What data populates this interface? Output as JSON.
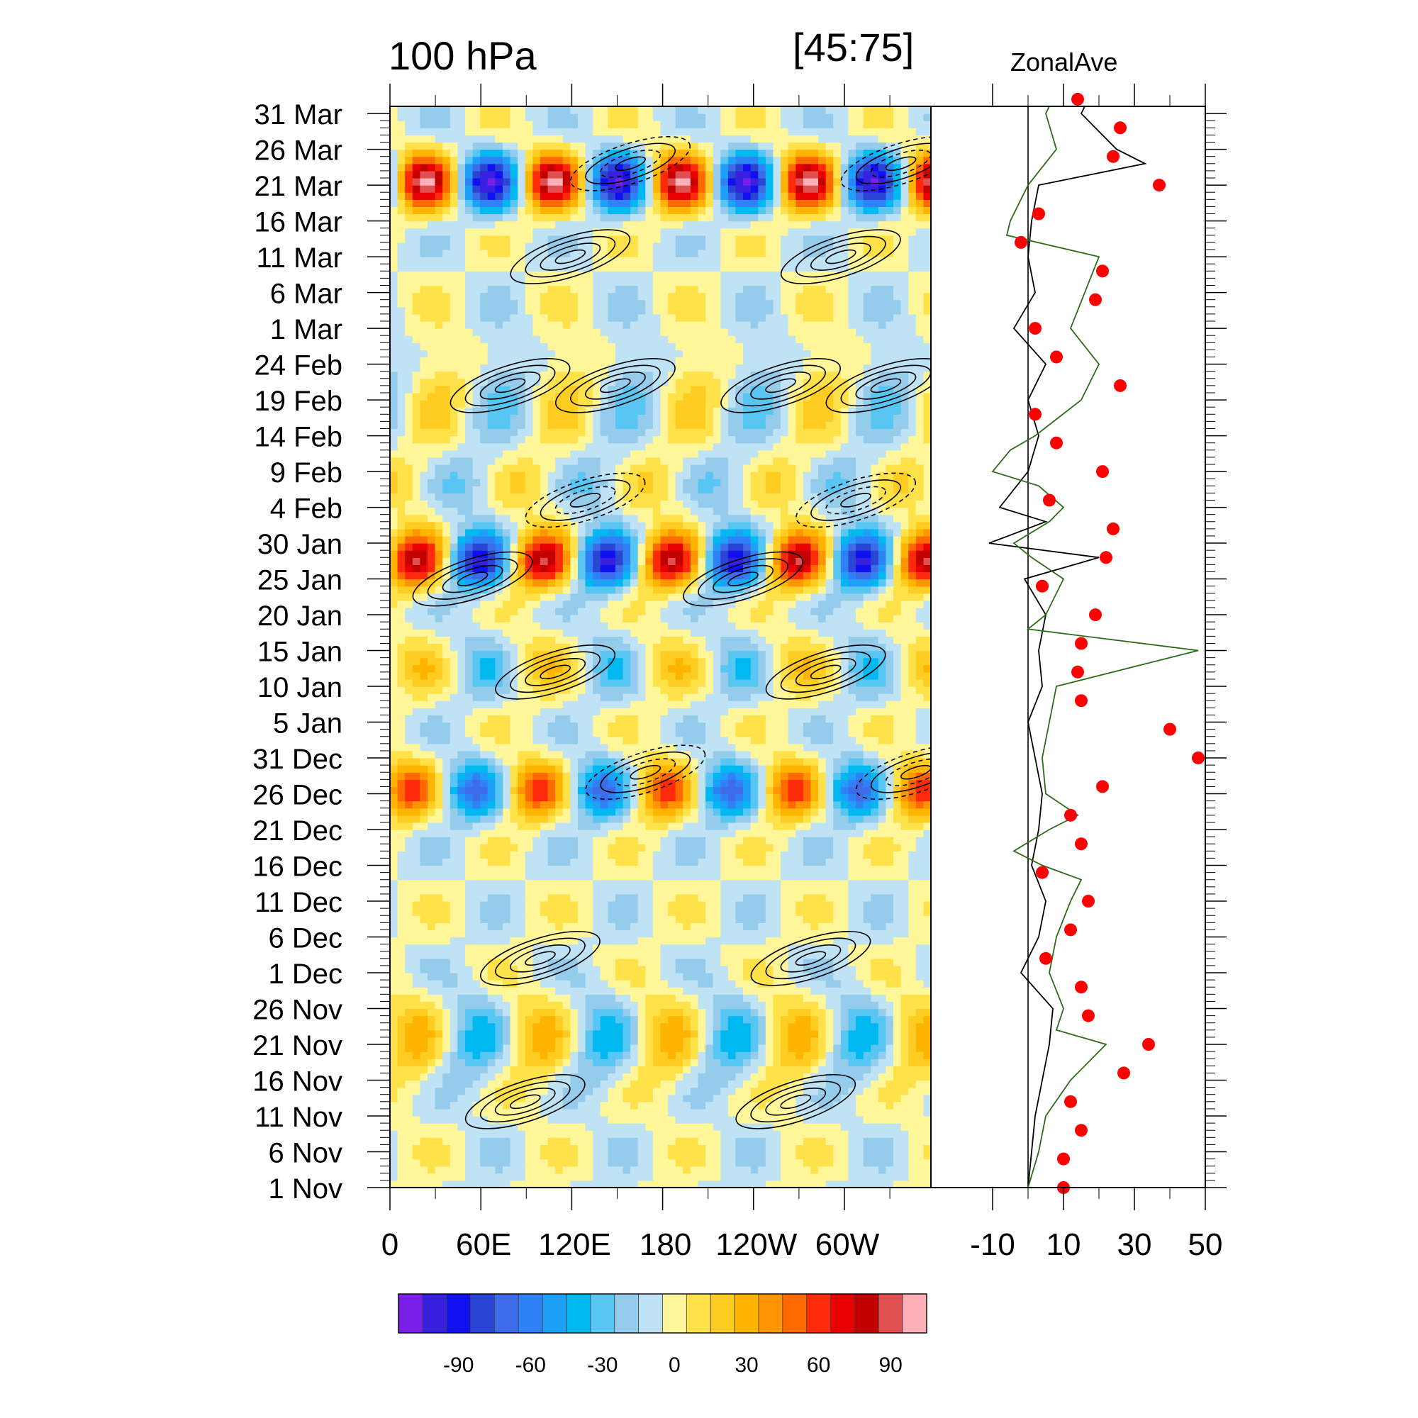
{
  "chart_data": [
    {
      "type": "heatmap",
      "title_left": "100 hPa",
      "title_center": "[45:75]",
      "x_tick_labels": [
        "0",
        "60E",
        "120E",
        "180",
        "120W",
        "60W"
      ],
      "y_tick_labels": [
        "1 Nov",
        "6 Nov",
        "11 Nov",
        "16 Nov",
        "21 Nov",
        "26 Nov",
        "1 Dec",
        "6 Dec",
        "11 Dec",
        "16 Dec",
        "21 Dec",
        "26 Dec",
        "31 Dec",
        "5 Jan",
        "10 Jan",
        "15 Jan",
        "20 Jan",
        "25 Jan",
        "30 Jan",
        "4 Feb",
        "9 Feb",
        "14 Feb",
        "19 Feb",
        "24 Feb",
        "1 Mar",
        "6 Mar",
        "11 Mar",
        "16 Mar",
        "21 Mar",
        "26 Mar",
        "31 Mar"
      ],
      "xlim_deg": [
        0,
        360
      ],
      "ylim_days": [
        0,
        150
      ],
      "contours": "black solid/dashed overlay",
      "notable_extrema": [
        {
          "lon": 50,
          "date": "21 Mar",
          "value": 95
        },
        {
          "lon": 100,
          "date": "21 Mar",
          "value": -55
        },
        {
          "lon": 35,
          "date": "27 Jan",
          "value": 90
        },
        {
          "lon": 130,
          "date": "30 Jan",
          "value": -80
        },
        {
          "lon": 20,
          "date": "26 Dec",
          "value": 65
        }
      ]
    },
    {
      "type": "line",
      "title": "ZonalAve",
      "x_tick_labels": [
        "-10",
        "10",
        "30",
        "50"
      ],
      "xlim": [
        -15,
        50
      ],
      "series": [
        {
          "color": "#000000",
          "values_by_day": [
            [
              0,
              0
            ],
            [
              5,
              1
            ],
            [
              10,
              2
            ],
            [
              15,
              4
            ],
            [
              20,
              6
            ],
            [
              25,
              7
            ],
            [
              30,
              -2
            ],
            [
              35,
              3
            ],
            [
              40,
              5
            ],
            [
              45,
              1
            ],
            [
              50,
              3
            ],
            [
              55,
              4
            ],
            [
              60,
              2
            ],
            [
              65,
              0
            ],
            [
              70,
              4
            ],
            [
              75,
              3
            ],
            [
              80,
              5
            ],
            [
              85,
              -1
            ],
            [
              88,
              20
            ],
            [
              90,
              -11
            ],
            [
              93,
              5
            ],
            [
              95,
              -8
            ],
            [
              100,
              0
            ],
            [
              105,
              3
            ],
            [
              110,
              0
            ],
            [
              115,
              5
            ],
            [
              120,
              -4
            ],
            [
              125,
              2
            ],
            [
              130,
              0
            ],
            [
              135,
              1
            ],
            [
              140,
              3
            ],
            [
              143,
              33
            ],
            [
              145,
              25
            ],
            [
              150,
              15
            ],
            [
              155,
              20
            ],
            [
              158,
              5
            ],
            [
              161,
              0
            ]
          ]
        },
        {
          "color": "#2e6b1a",
          "values_by_day": [
            [
              0,
              0
            ],
            [
              5,
              3
            ],
            [
              10,
              5
            ],
            [
              15,
              12
            ],
            [
              20,
              22
            ],
            [
              22,
              8
            ],
            [
              25,
              10
            ],
            [
              30,
              6
            ],
            [
              35,
              8
            ],
            [
              40,
              12
            ],
            [
              43,
              15
            ],
            [
              45,
              4
            ],
            [
              47,
              -4
            ],
            [
              50,
              6
            ],
            [
              52,
              14
            ],
            [
              55,
              5
            ],
            [
              60,
              4
            ],
            [
              65,
              6
            ],
            [
              70,
              8
            ],
            [
              75,
              48
            ],
            [
              78,
              0
            ],
            [
              80,
              5
            ],
            [
              85,
              10
            ],
            [
              88,
              1
            ],
            [
              90,
              -4
            ],
            [
              93,
              6
            ],
            [
              95,
              10
            ],
            [
              98,
              3
            ],
            [
              100,
              -10
            ],
            [
              103,
              -5
            ],
            [
              105,
              2
            ],
            [
              110,
              15
            ],
            [
              115,
              20
            ],
            [
              120,
              12
            ],
            [
              125,
              16
            ],
            [
              130,
              20
            ],
            [
              133,
              -6
            ],
            [
              135,
              -5
            ],
            [
              140,
              0
            ],
            [
              145,
              8
            ],
            [
              150,
              5
            ],
            [
              155,
              10
            ],
            [
              160,
              0
            ]
          ]
        }
      ],
      "points": {
        "color": "#ff0000",
        "values_by_day": [
          [
            0,
            10
          ],
          [
            4,
            10
          ],
          [
            8,
            15
          ],
          [
            12,
            12
          ],
          [
            16,
            27
          ],
          [
            20,
            34
          ],
          [
            24,
            17
          ],
          [
            28,
            15
          ],
          [
            32,
            5
          ],
          [
            36,
            12
          ],
          [
            40,
            17
          ],
          [
            44,
            4
          ],
          [
            48,
            15
          ],
          [
            52,
            12
          ],
          [
            56,
            21
          ],
          [
            60,
            48
          ],
          [
            64,
            40
          ],
          [
            68,
            15
          ],
          [
            72,
            14
          ],
          [
            76,
            15
          ],
          [
            80,
            19
          ],
          [
            84,
            4
          ],
          [
            88,
            22
          ],
          [
            92,
            24
          ],
          [
            96,
            6
          ],
          [
            100,
            21
          ],
          [
            104,
            8
          ],
          [
            108,
            2
          ],
          [
            112,
            26
          ],
          [
            116,
            8
          ],
          [
            120,
            2
          ],
          [
            124,
            19
          ],
          [
            128,
            21
          ],
          [
            132,
            -2
          ],
          [
            136,
            3
          ],
          [
            140,
            37
          ],
          [
            144,
            24
          ],
          [
            148,
            26
          ],
          [
            152,
            14
          ]
        ]
      }
    }
  ],
  "colorbar": {
    "colors": [
      "#7a1fe8",
      "#3820e0",
      "#1010f0",
      "#2a45d4",
      "#3e6be8",
      "#2f82f5",
      "#1ea0f8",
      "#00b8f0",
      "#58c6f3",
      "#95ccec",
      "#bfe3f5",
      "#fff599",
      "#ffe24a",
      "#ffcc22",
      "#ffb400",
      "#ff9500",
      "#ff6a00",
      "#ff2a0a",
      "#e80000",
      "#c20000",
      "#e05050",
      "#ffb0b8"
    ],
    "tick_labels": [
      "-90",
      "-60",
      "-30",
      "0",
      "30",
      "60",
      "90"
    ]
  }
}
